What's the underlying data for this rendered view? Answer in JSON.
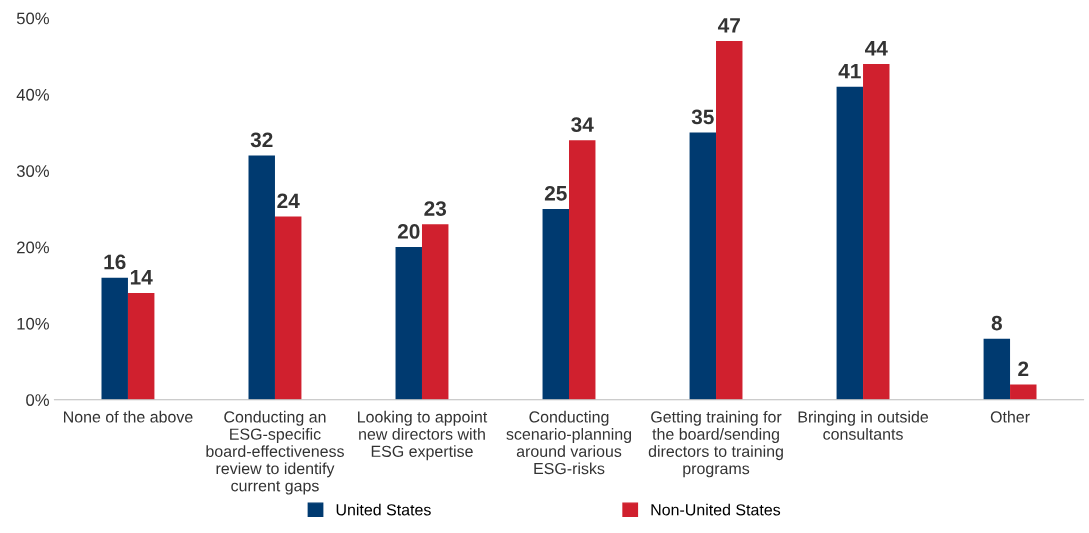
{
  "chart_data": {
    "type": "bar",
    "categories": [
      "None of the above",
      "Conducting an\nESG-specific\nboard-effectiveness\nreview to identify\ncurrent gaps",
      "Looking to appoint\nnew directors with\nESG expertise",
      "Conducting\nscenario-planning\naround various\nESG-risks",
      "Getting training for\nthe board/sending\ndirectors to training\nprograms",
      "Bringing in outside\nconsultants",
      "Other"
    ],
    "series": [
      {
        "name": "United States",
        "color": "#003a70",
        "values": [
          16,
          32,
          20,
          25,
          35,
          41,
          8
        ]
      },
      {
        "name": "Non-United States",
        "color": "#d0202e",
        "values": [
          14,
          24,
          23,
          34,
          47,
          44,
          2
        ]
      }
    ],
    "ylim": [
      0,
      50
    ],
    "yticks": [
      {
        "value": 0,
        "label": "0%"
      },
      {
        "value": 10,
        "label": "10%"
      },
      {
        "value": 20,
        "label": "20%"
      },
      {
        "value": 30,
        "label": "30%"
      },
      {
        "value": 40,
        "label": "40%"
      },
      {
        "value": 50,
        "label": "50%"
      }
    ],
    "data_labels": true,
    "grid": false,
    "legend": "bottom"
  }
}
